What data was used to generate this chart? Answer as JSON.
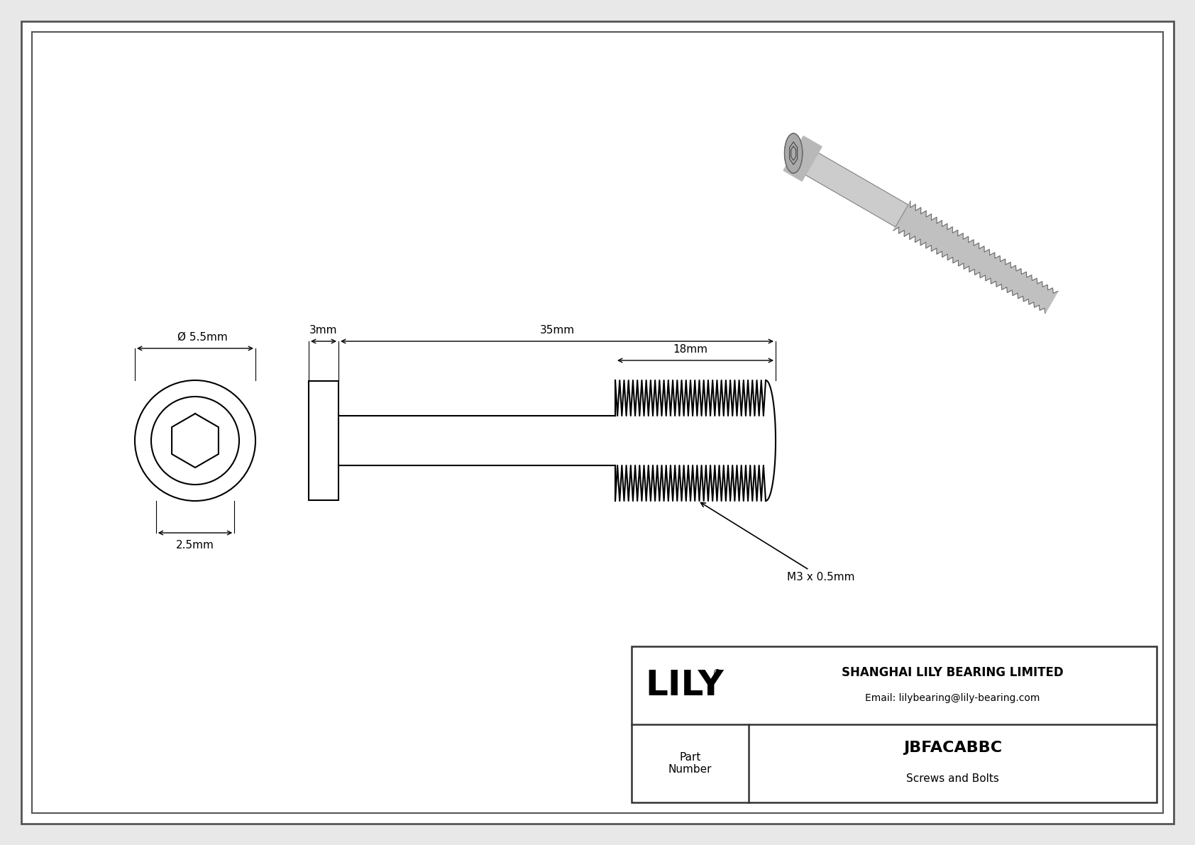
{
  "bg_color": "#e8e8e8",
  "drawing_bg": "#ffffff",
  "border_color": "#000000",
  "line_color": "#000000",
  "title": "JBFACABBC",
  "subtitle": "Screws and Bolts",
  "company": "SHANGHAI LILY BEARING LIMITED",
  "email": "Email: lilybearing@lily-bearing.com",
  "part_label": "Part\nNumber",
  "logo_reg": "®",
  "dim_diameter": "Ø 5.5mm",
  "dim_head_height": "2.5mm",
  "dim_head_width": "3mm",
  "dim_total_length": "35mm",
  "dim_thread_length": "18mm",
  "dim_thread_spec": "M3 x 0.5mm",
  "fig_w": 16.84,
  "fig_h": 11.91,
  "dpi": 100
}
